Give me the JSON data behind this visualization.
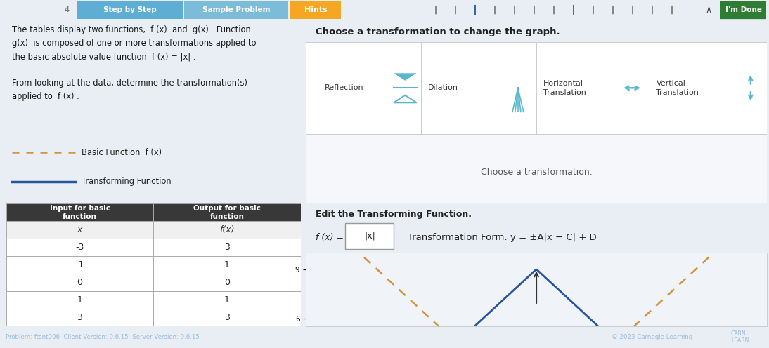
{
  "bg_color": "#e8eef4",
  "text_block_line1": "The tables display two functions,  f (x)  and  g(x) . Function",
  "text_block_line2": "g(x)  is composed of one or more transformations applied to",
  "text_block_line3": "the basic absolute value function  f (x) = |x| .",
  "text_block_line4": "",
  "text_block_line5": "From looking at the data, determine the transformation(s)",
  "text_block_line6": "applied to  f (x) .",
  "legend_basic": "Basic Function  f (x)",
  "legend_transform": "Transforming Function",
  "table_headers_col1": "Input for basic\nfunction",
  "table_headers_col2": "Output for basic\nfunction",
  "table_sub_col1": "x",
  "table_sub_col2": "f(x)",
  "table_data": [
    [
      -3,
      3
    ],
    [
      -1,
      1
    ],
    [
      0,
      0
    ],
    [
      1,
      1
    ],
    [
      3,
      3
    ]
  ],
  "title_text": "Choose a transformation to change the graph.",
  "btn_labels": [
    "Reflection",
    "Dilation",
    "Horizontal\nTranslation",
    "Vertical\nTranslation"
  ],
  "choose_text": "Choose a transformation.",
  "edit_text": "Edit the Transforming Function.",
  "fx_label": "f (x) =",
  "fx_value": "|x|",
  "transform_form": "Transformation Form: y = ±A|x − C| + D",
  "graph_yticks": [
    6,
    9
  ],
  "graph_ylim": [
    5.5,
    10.0
  ],
  "bottom_bar_color": "#2855a0",
  "copyright_text": "© 2023 Carnegie Learning",
  "brand_text": "CARN\nLEARN",
  "version_text": "Problem: ftsnt006  Client Version: 9.6.15  Server Version: 9.6.15",
  "top_bg": "#dde6f0",
  "step_btn_color": "#5eadd4",
  "sample_btn_color": "#7bbdd8",
  "hints_btn_color": "#f5a623",
  "done_btn_color": "#2e7d32",
  "nav_dot_count": 13,
  "nav_dot_filled": 2,
  "nav_dot_green": 7,
  "dash_color": "#d4933a",
  "blue_line_color": "#2855a0",
  "graph_bg": "#f0f4f8",
  "panel_bg": "#ffffff",
  "panel_border": "#cccccc",
  "header_dark": "#383838",
  "table_border": "#aaaaaa"
}
